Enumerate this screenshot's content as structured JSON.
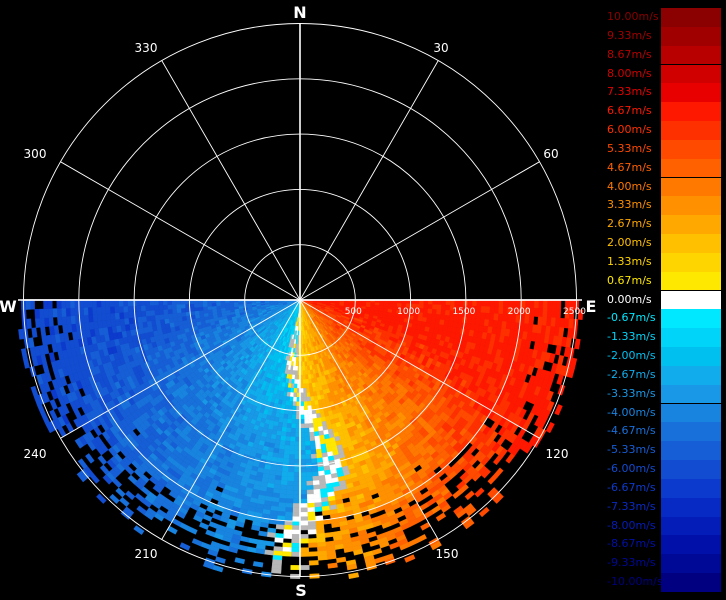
{
  "chart_data": {
    "type": "polar-heatmap",
    "title": "",
    "compass": {
      "north": "N",
      "east": "E",
      "south": "S",
      "west": "W"
    },
    "angle_labels": [
      "30",
      "60",
      "120",
      "150",
      "210",
      "240",
      "300",
      "330"
    ],
    "range_labels": [
      "500",
      "1000",
      "1500",
      "2000",
      "2500"
    ],
    "range_unit": "m",
    "max_range": 2550,
    "coverage_azimuth_deg": [
      90,
      270
    ],
    "velocity_field": {
      "positive_sector_deg": [
        90,
        180
      ],
      "negative_sector_deg": [
        180,
        270
      ],
      "positive_max": 7.0,
      "negative_min": -6.5
    },
    "legend": [
      {
        "label": "10.00m/s",
        "color": "#8b0000"
      },
      {
        "label": "9.33m/s",
        "color": "#a00000"
      },
      {
        "label": "8.67m/s",
        "color": "#b80000"
      },
      {
        "label": "8.00m/s",
        "color": "#d00000"
      },
      {
        "label": "7.33m/s",
        "color": "#e80000"
      },
      {
        "label": "6.67m/s",
        "color": "#ff1800"
      },
      {
        "label": "6.00m/s",
        "color": "#ff3000"
      },
      {
        "label": "5.33m/s",
        "color": "#ff4a00"
      },
      {
        "label": "4.67m/s",
        "color": "#ff6000"
      },
      {
        "label": "4.00m/s",
        "color": "#ff7800"
      },
      {
        "label": "3.33m/s",
        "color": "#ff9000"
      },
      {
        "label": "2.67m/s",
        "color": "#ffa800"
      },
      {
        "label": "2.00m/s",
        "color": "#ffc000"
      },
      {
        "label": "1.33m/s",
        "color": "#ffd500"
      },
      {
        "label": "0.67m/s",
        "color": "#ffe800"
      },
      {
        "label": "0.00m/s",
        "color": "#ffffff"
      },
      {
        "label": "-0.67m/s",
        "color": "#00e8ff"
      },
      {
        "label": "-1.33m/s",
        "color": "#00d4f8"
      },
      {
        "label": "-2.00m/s",
        "color": "#00c0f0"
      },
      {
        "label": "-2.67m/s",
        "color": "#10acec"
      },
      {
        "label": "-3.33m/s",
        "color": "#1898e6"
      },
      {
        "label": "-4.00m/s",
        "color": "#1884e0"
      },
      {
        "label": "-4.67m/s",
        "color": "#1870da"
      },
      {
        "label": "-5.33m/s",
        "color": "#165ed6"
      },
      {
        "label": "-6.00m/s",
        "color": "#124cd0"
      },
      {
        "label": "-6.67m/s",
        "color": "#0c3acc"
      },
      {
        "label": "-7.33m/s",
        "color": "#082ac4"
      },
      {
        "label": "-8.00m/s",
        "color": "#041cb8"
      },
      {
        "label": "-8.67m/s",
        "color": "#0010a8"
      },
      {
        "label": "-9.33m/s",
        "color": "#000896"
      },
      {
        "label": "-10.00m/s",
        "color": "#000080"
      }
    ]
  }
}
